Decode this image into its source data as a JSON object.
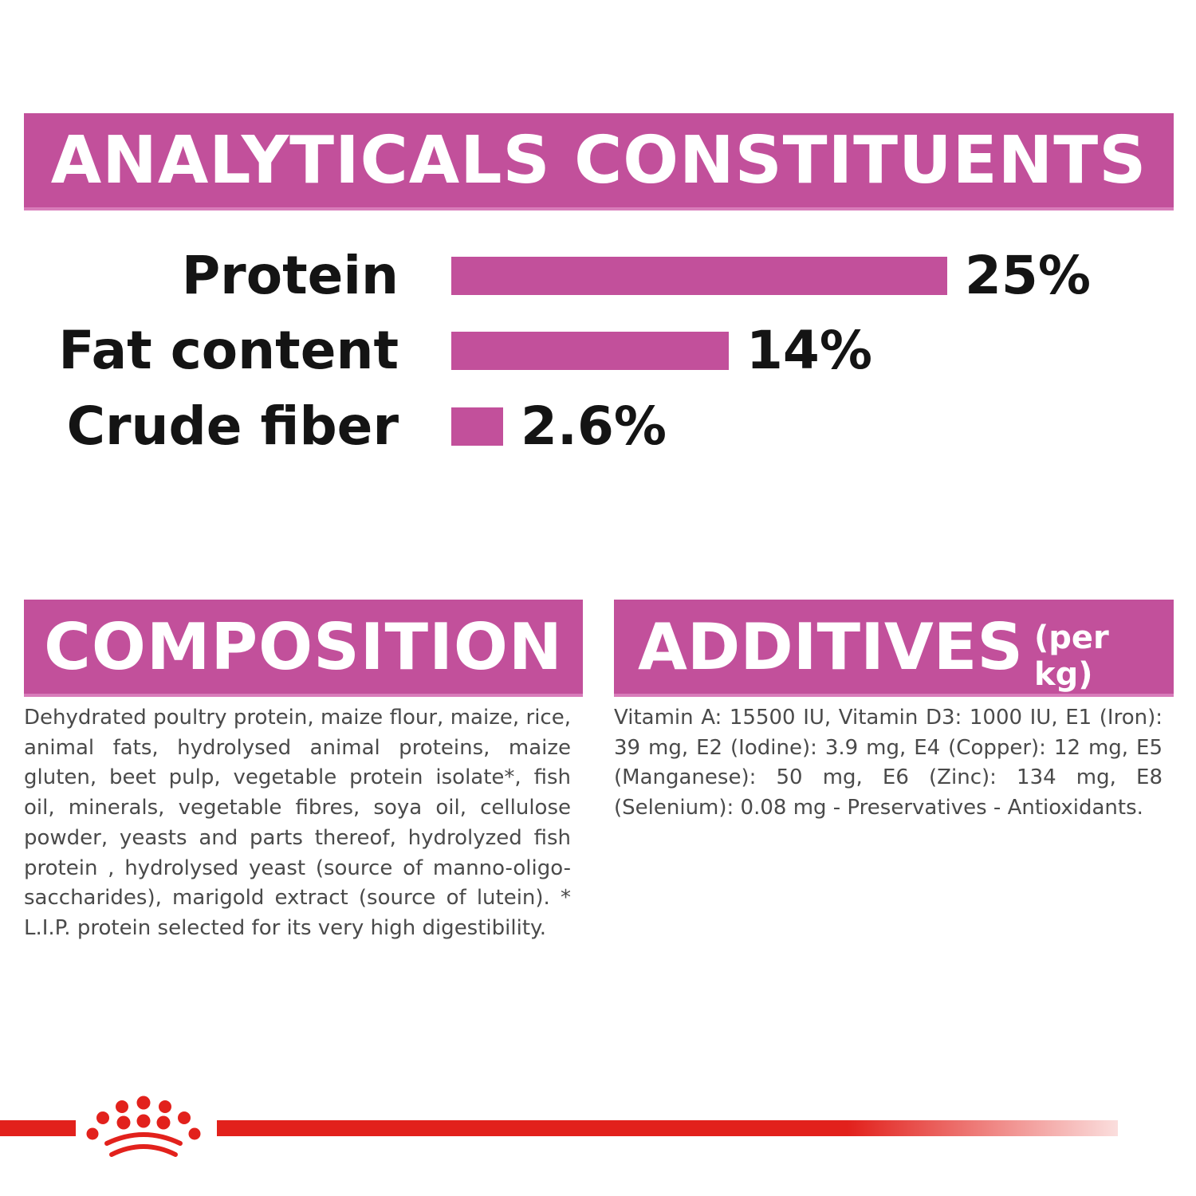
{
  "analytical": {
    "title": "ANALYTICALS CONSTITUENTS",
    "items": [
      {
        "label": "Protein",
        "value_text": "25%",
        "value": 25
      },
      {
        "label": "Fat content",
        "value_text": "14%",
        "value": 14
      },
      {
        "label": "Crude fiber",
        "value_text": "2.6%",
        "value": 2.6
      }
    ]
  },
  "composition": {
    "title": "COMPOSITION",
    "text": "Dehydrated poultry protein, maize flour, maize, rice, animal fats, hydrolysed animal proteins, maize gluten, beet pulp, vegetable protein isolate*, fish oil, minerals, vegetable fibres, soya oil, cellulose powder, yeasts and parts thereof, hydrolyzed fish protein , hydrolysed yeast (source of manno-oligo-saccharides), marigold extract (source of lutein). * L.I.P. protein selected for its very high digestibility."
  },
  "additives": {
    "title": "ADDITIVES",
    "title_suffix": "(per kg)",
    "text": "Vitamin A: 15500 IU, Vitamin D3: 1000 IU, E1 (Iron): 39 mg, E2 (Iodine): 3.9 mg, E4 (Copper): 12 mg, E5 (Manganese): 50 mg, E6 (Zinc): 134 mg, E8 (Selenium): 0.08 mg - Preservatives - Antioxidants."
  },
  "colors": {
    "accent": "#c2509b",
    "brand_red": "#e2211c"
  },
  "icons": {
    "logo": "royal-crown-icon"
  }
}
